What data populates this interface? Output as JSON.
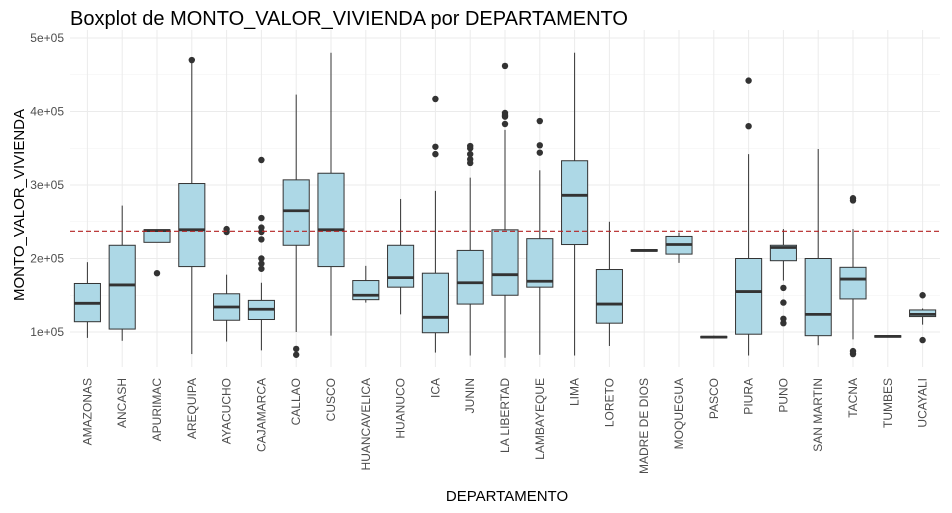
{
  "chart_data": {
    "type": "boxplot",
    "title": "Boxplot de MONTO_VALOR_VIVIENDA por DEPARTAMENTO",
    "xlabel": "DEPARTAMENTO",
    "ylabel": "MONTO_VALOR_VIVIENDA",
    "ylim": [
      50000,
      500000
    ],
    "y_ticks": [
      100000,
      200000,
      300000,
      400000,
      500000
    ],
    "y_tick_labels": [
      "1e+05",
      "2e+05",
      "3e+05",
      "4e+05",
      "5e+05"
    ],
    "reference_line": {
      "value": 237000,
      "style": "dashed",
      "color": "#b22222"
    },
    "box_fill": "#add8e6",
    "grid": true,
    "categories": [
      "AMAZONAS",
      "ANCASH",
      "APURIMAC",
      "AREQUIPA",
      "AYACUCHO",
      "CAJAMARCA",
      "CALLAO",
      "CUSCO",
      "HUANCAVELICA",
      "HUANUCO",
      "ICA",
      "JUNIN",
      "LA LIBERTAD",
      "LAMBAYEQUE",
      "LIMA",
      "LORETO",
      "MADRE DE DIOS",
      "MOQUEGUA",
      "PASCO",
      "PIURA",
      "PUNO",
      "SAN MARTIN",
      "TACNA",
      "TUMBES",
      "UCAYALI"
    ],
    "boxes": [
      {
        "min": 92000,
        "q1": 114000,
        "median": 139000,
        "q3": 166000,
        "max": 195000,
        "outliers": []
      },
      {
        "min": 88000,
        "q1": 104000,
        "median": 164000,
        "q3": 218000,
        "max": 272000,
        "outliers": []
      },
      {
        "min": 222000,
        "q1": 222000,
        "median": 238000,
        "q3": 239000,
        "max": 239000,
        "outliers": [
          180000
        ]
      },
      {
        "min": 70000,
        "q1": 189000,
        "median": 239000,
        "q3": 302000,
        "max": 470000,
        "outliers": [
          470000
        ]
      },
      {
        "min": 87000,
        "q1": 116000,
        "median": 134000,
        "q3": 152000,
        "max": 178000,
        "outliers": [
          236000,
          240000
        ]
      },
      {
        "min": 75000,
        "q1": 117000,
        "median": 131000,
        "q3": 143000,
        "max": 167000,
        "outliers": [
          186000,
          193000,
          200000,
          226000,
          236000,
          242000,
          255000,
          334000
        ]
      },
      {
        "min": 100000,
        "q1": 218000,
        "median": 265000,
        "q3": 307000,
        "max": 423000,
        "outliers": [
          69000,
          77000
        ]
      },
      {
        "min": 95000,
        "q1": 189000,
        "median": 239000,
        "q3": 316000,
        "max": 480000,
        "outliers": []
      },
      {
        "min": 140000,
        "q1": 144000,
        "median": 150000,
        "q3": 170000,
        "max": 190000,
        "outliers": []
      },
      {
        "min": 124000,
        "q1": 161000,
        "median": 174000,
        "q3": 218000,
        "max": 281000,
        "outliers": []
      },
      {
        "min": 72000,
        "q1": 99000,
        "median": 120000,
        "q3": 180000,
        "max": 292000,
        "outliers": [
          342000,
          352000,
          417000
        ]
      },
      {
        "min": 68000,
        "q1": 138000,
        "median": 167000,
        "q3": 211000,
        "max": 310000,
        "outliers": [
          330000,
          335000,
          342000,
          350000,
          353000
        ]
      },
      {
        "min": 65000,
        "q1": 150000,
        "median": 178000,
        "q3": 239000,
        "max": 375000,
        "outliers": [
          383000,
          393000,
          395000,
          398000,
          462000
        ]
      },
      {
        "min": 69000,
        "q1": 161000,
        "median": 169000,
        "q3": 227000,
        "max": 320000,
        "outliers": [
          344000,
          354000,
          387000
        ]
      },
      {
        "min": 68000,
        "q1": 219000,
        "median": 286000,
        "q3": 333000,
        "max": 480000,
        "outliers": []
      },
      {
        "min": 81000,
        "q1": 112000,
        "median": 138000,
        "q3": 185000,
        "max": 250000,
        "outliers": []
      },
      {
        "min": 210000,
        "q1": 210000,
        "median": 211000,
        "q3": 212000,
        "max": 212000,
        "outliers": []
      },
      {
        "min": 194000,
        "q1": 206000,
        "median": 219000,
        "q3": 230000,
        "max": 235000,
        "outliers": []
      },
      {
        "min": 92000,
        "q1": 92000,
        "median": 93000,
        "q3": 94000,
        "max": 95000,
        "outliers": []
      },
      {
        "min": 68000,
        "q1": 97000,
        "median": 155000,
        "q3": 200000,
        "max": 342000,
        "outliers": [
          380000,
          442000
        ]
      },
      {
        "min": 170000,
        "q1": 197000,
        "median": 215000,
        "q3": 218000,
        "max": 240000,
        "outliers": [
          112000,
          118000,
          140000,
          160000
        ]
      },
      {
        "min": 82000,
        "q1": 95000,
        "median": 124000,
        "q3": 200000,
        "max": 349000,
        "outliers": []
      },
      {
        "min": 90000,
        "q1": 145000,
        "median": 172000,
        "q3": 188000,
        "max": 240000,
        "outliers": [
          70000,
          74000,
          279000,
          282000
        ]
      },
      {
        "min": 93000,
        "q1": 93000,
        "median": 94000,
        "q3": 95000,
        "max": 95000,
        "outliers": []
      },
      {
        "min": 110000,
        "q1": 121000,
        "median": 124000,
        "q3": 130000,
        "max": 132000,
        "outliers": [
          89000,
          150000
        ]
      }
    ]
  }
}
